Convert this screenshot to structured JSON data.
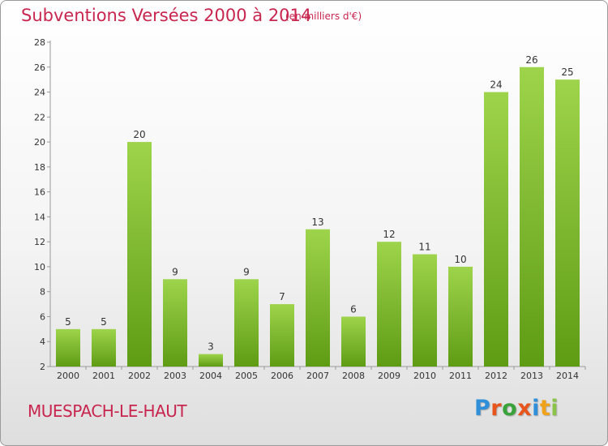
{
  "title": "Subventions Versées 2000 à 2014",
  "unit_note": "(en milliers d'€)",
  "place": "MUESPACH-LE-HAUT",
  "logo": {
    "text": "Proxiti",
    "colors": [
      "#2f8fd8",
      "#e8551c",
      "#3aa23a",
      "#e8551c",
      "#2f8fd8",
      "#f0a31a",
      "#8bc34a"
    ]
  },
  "colors": {
    "title": "#c8264f",
    "bar_top": "#9ed44c",
    "bar_bottom": "#5e9c14",
    "axis": "#999999",
    "grid": "#dddddd"
  },
  "chart_data": {
    "type": "bar",
    "title": "Subventions Versées 2000 à 2014",
    "subtitle": "(en milliers d'€)",
    "xlabel": "",
    "ylabel": "",
    "categories": [
      "2000",
      "2001",
      "2002",
      "2003",
      "2004",
      "2005",
      "2006",
      "2007",
      "2008",
      "2009",
      "2010",
      "2011",
      "2012",
      "2013",
      "2014"
    ],
    "values": [
      5,
      5,
      20,
      9,
      3,
      9,
      7,
      13,
      6,
      12,
      11,
      10,
      24,
      26,
      25
    ],
    "ylim": [
      2,
      28
    ],
    "yticks": [
      2,
      4,
      6,
      8,
      10,
      12,
      14,
      16,
      18,
      20,
      22,
      24,
      26,
      28
    ],
    "grid": false,
    "legend": "none"
  }
}
